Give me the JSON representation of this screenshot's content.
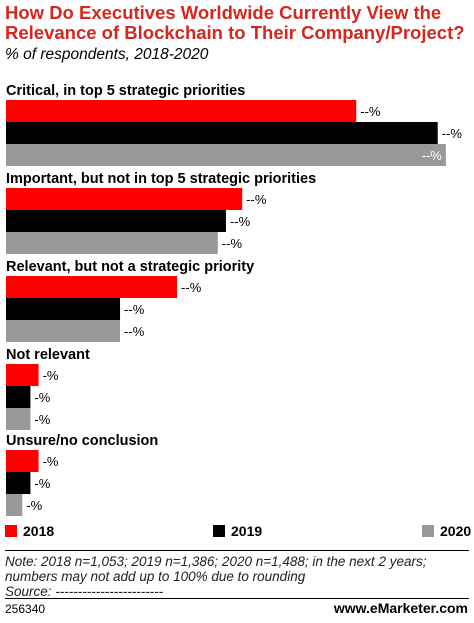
{
  "header": {
    "title": "How Do Executives Worldwide Currently View the Relevance of Blockchain to Their Company/Project?",
    "subtitle": "% of respondents, 2018-2020"
  },
  "chart_data": {
    "type": "bar",
    "orientation": "horizontal",
    "categories": [
      "Critical, in top 5 strategic priorities",
      "Important, but not in top 5 strategic priorities",
      "Relevant, but not a strategic priority",
      "Not relevant",
      "Unsure/no conclusion"
    ],
    "series": [
      {
        "name": "2018",
        "color": "#ff0000",
        "values": [
          43,
          29,
          21,
          4,
          4
        ],
        "labels": [
          "--%",
          "--%",
          "--%",
          "-%",
          "-%"
        ]
      },
      {
        "name": "2019",
        "color": "#000000",
        "values": [
          53,
          27,
          14,
          3,
          3
        ],
        "labels": [
          "--%",
          "--%",
          "--%",
          "-%",
          "-%"
        ]
      },
      {
        "name": "2020",
        "color": "#999999",
        "values": [
          54,
          26,
          14,
          3,
          2
        ],
        "labels": [
          "--%",
          "--%",
          "--%",
          "-%",
          "-%"
        ]
      }
    ],
    "xlim": [
      0,
      55
    ],
    "grid": false,
    "legend": "bottom"
  },
  "footer": {
    "note": "Note: 2018 n=1,053; 2019 n=1,386; 2020 n=1,488; in the next 2 years; numbers may not add up to 100% due to rounding",
    "source": "Source: ------------------------",
    "code": "256340",
    "brand_prefix": "www.",
    "brand_name": "eMarketer",
    "brand_suffix": ".com"
  }
}
